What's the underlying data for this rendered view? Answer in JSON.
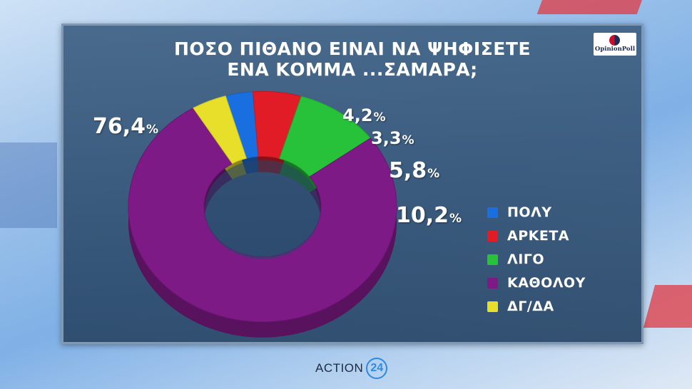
{
  "title_lines": [
    "ΠΟΣΟ ΠΙΘΑΝΟ ΕΙΝΑΙ ΝΑ ΨΗΦΙΣΕΤΕ",
    "ΕΝΑ ΚΟΜΜΑ ...ΣΑΜΑΡΑ;"
  ],
  "source_logo": {
    "text": "OpinionPoll"
  },
  "channel_logo": {
    "word": "ACTION",
    "number": "24"
  },
  "colors": {
    "panel": "#3f6285",
    "text": "#ffffff"
  },
  "chart_data": {
    "type": "pie",
    "style": "3d-donut",
    "title": "ΠΟΣΟ ΠΙΘΑΝΟ ΕΙΝΑΙ ΝΑ ΨΗΦΙΣΕΤΕ ΕΝΑ ΚΟΜΜΑ ...ΣΑΜΑΡΑ;",
    "unit": "%",
    "slices": [
      {
        "label": "ΠΟΛΥ",
        "value": 3.3,
        "value_text": "3,3",
        "color": "#1a6fe0"
      },
      {
        "label": "ΑΡΚΕΤΑ",
        "value": 5.8,
        "value_text": "5,8",
        "color": "#e21c26"
      },
      {
        "label": "ΛΙΓΟ",
        "value": 10.2,
        "value_text": "10,2",
        "color": "#27c23a"
      },
      {
        "label": "ΚΑΘΟΛΟΥ",
        "value": 76.4,
        "value_text": "76,4",
        "color": "#7d1a86"
      },
      {
        "label": "ΔΓ/ΔΑ",
        "value": 4.2,
        "value_text": "4,2",
        "color": "#e8df2a"
      }
    ],
    "legend_position": "right"
  }
}
